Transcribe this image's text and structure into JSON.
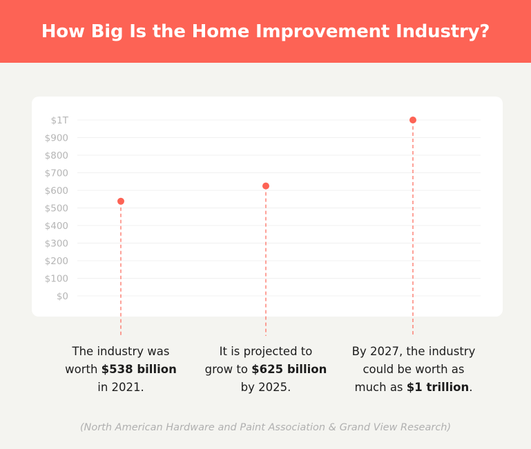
{
  "title": "How Big Is the Home Improvement Industry?",
  "colors": {
    "accent": "#fd6355",
    "background": "#f4f4f0",
    "card": "#ffffff",
    "tick": "#b5b5b5",
    "grid": "#f0f0f0"
  },
  "chart_data": {
    "type": "scatter",
    "title": "How Big Is the Home Improvement Industry?",
    "xlabel": "",
    "ylabel": "",
    "y_unit": "billion USD",
    "ylim": [
      0,
      1000
    ],
    "yticks": [
      0,
      100,
      200,
      300,
      400,
      500,
      600,
      700,
      800,
      900,
      1000
    ],
    "ytick_labels": [
      "$0",
      "$100",
      "$200",
      "$300",
      "$400",
      "$500",
      "$600",
      "$700",
      "$800",
      "$900",
      "$1T"
    ],
    "grid": true,
    "points": [
      {
        "label": "2021",
        "value": 538
      },
      {
        "label": "2025",
        "value": 625
      },
      {
        "label": "2027",
        "value": 1000
      }
    ]
  },
  "captions": [
    {
      "before": "The industry was worth ",
      "bold": "$538 billion",
      "after": " in 2021."
    },
    {
      "before": "It is projected to grow to ",
      "bold": "$625 billion",
      "after": " by 2025."
    },
    {
      "before": "By 2027, the industry could be worth as much as ",
      "bold": "$1 trillion",
      "after": "."
    }
  ],
  "source": "(North American Hardware and Paint Association & Grand View Research)"
}
